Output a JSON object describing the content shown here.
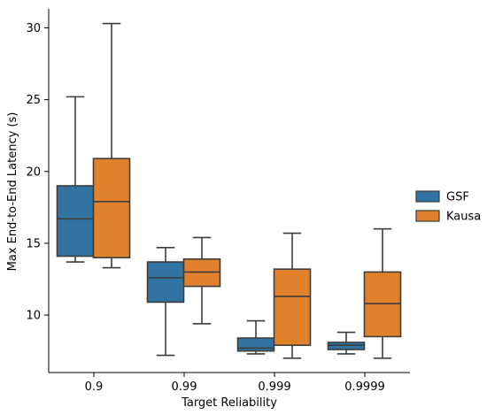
{
  "chart_data": {
    "type": "boxplot",
    "xlabel": "Target Reliability",
    "ylabel": "Max End-to-End Latency (s)",
    "categories": [
      "0.9",
      "0.99",
      "0.999",
      "0.9999"
    ],
    "ylim": [
      6.0,
      31.2
    ],
    "yticks": [
      10,
      15,
      20,
      25,
      30
    ],
    "grid": false,
    "legend_position": "right",
    "series": [
      {
        "name": "GSF",
        "color": "#3274a1",
        "boxes": [
          {
            "whisker_low": 13.7,
            "q1": 14.1,
            "median": 16.7,
            "q3": 19.0,
            "whisker_high": 25.2
          },
          {
            "whisker_low": 7.2,
            "q1": 10.9,
            "median": 12.6,
            "q3": 13.7,
            "whisker_high": 14.7
          },
          {
            "whisker_low": 7.3,
            "q1": 7.5,
            "median": 7.7,
            "q3": 8.4,
            "whisker_high": 9.6
          },
          {
            "whisker_low": 7.3,
            "q1": 7.6,
            "median": 7.9,
            "q3": 8.1,
            "whisker_high": 8.8
          }
        ]
      },
      {
        "name": "Kausa",
        "color": "#e1812c",
        "boxes": [
          {
            "whisker_low": 13.3,
            "q1": 14.0,
            "median": 17.9,
            "q3": 20.9,
            "whisker_high": 30.3
          },
          {
            "whisker_low": 9.4,
            "q1": 12.0,
            "median": 13.0,
            "q3": 13.9,
            "whisker_high": 15.4
          },
          {
            "whisker_low": 7.0,
            "q1": 7.9,
            "median": 11.3,
            "q3": 13.2,
            "whisker_high": 15.7
          },
          {
            "whisker_low": 7.0,
            "q1": 8.5,
            "median": 10.8,
            "q3": 13.0,
            "whisker_high": 16.0
          }
        ]
      }
    ]
  }
}
